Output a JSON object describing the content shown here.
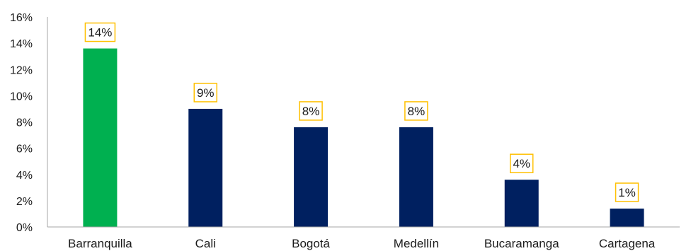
{
  "chart_data": {
    "type": "bar",
    "categories": [
      "Barranquilla",
      "Cali",
      "Bogotá",
      "Medellín",
      "Bucaramanga",
      "Cartagena"
    ],
    "values": [
      13.6,
      9.0,
      7.6,
      7.6,
      3.6,
      1.4
    ],
    "data_labels": [
      "14%",
      "9%",
      "8%",
      "8%",
      "4%",
      "1%"
    ],
    "y_ticks": [
      "0%",
      "2%",
      "4%",
      "6%",
      "8%",
      "10%",
      "12%",
      "14%",
      "16%"
    ],
    "ylim": [
      0,
      16
    ],
    "title": "",
    "xlabel": "",
    "ylabel": "",
    "grid": false,
    "legend": "none",
    "colors": {
      "highlight": "#00b050",
      "bar": "#002060",
      "label_border": "#ffc000",
      "axis": "#a6a6a6"
    },
    "highlight_index": 0
  }
}
